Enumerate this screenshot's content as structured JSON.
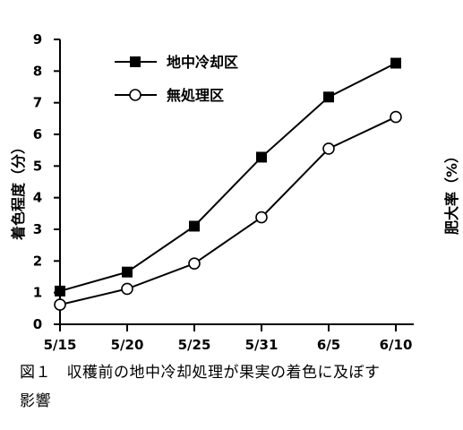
{
  "chart_data": {
    "type": "line",
    "x": [
      "5/15",
      "5/20",
      "5/25",
      "5/31",
      "6/5",
      "6/10"
    ],
    "series": [
      {
        "name": "地中冷却区",
        "marker": "filled-square",
        "values": [
          1.05,
          1.65,
          3.1,
          5.28,
          7.18,
          8.25
        ]
      },
      {
        "name": "無処理区",
        "marker": "open-circle",
        "values": [
          0.62,
          1.12,
          1.92,
          3.38,
          5.55,
          6.55
        ]
      }
    ],
    "ylabel_left": "着色程度（分）",
    "ylabel_right": "肥大率（%）",
    "ylim": [
      0,
      9
    ],
    "yticks": [
      "0",
      "1",
      "2",
      "3",
      "4",
      "5",
      "6",
      "7",
      "8",
      "9"
    ],
    "grid": false,
    "legend_position": "top-left"
  },
  "caption": {
    "line1": "図１　収穫前の地中冷却処理が果実の着色に及ぼす",
    "line2": "影響"
  },
  "colors": {
    "line": "#000000",
    "background": "#ffffff"
  }
}
